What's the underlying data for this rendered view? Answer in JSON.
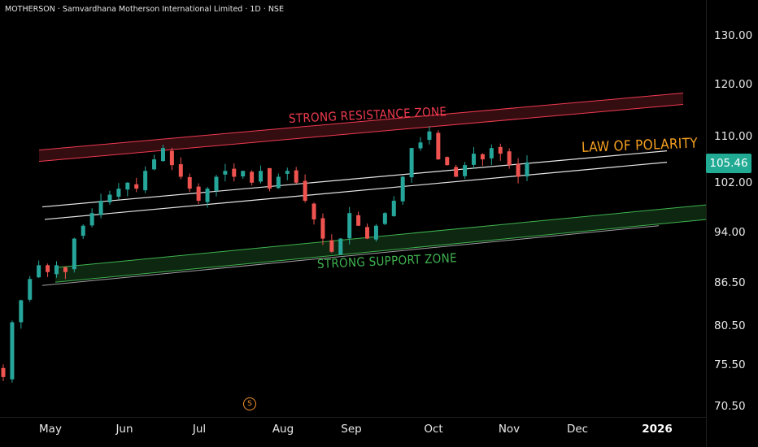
{
  "header": {
    "ticker": "MOTHERSON",
    "company": "Samvardhana Motherson International Limited",
    "interval": "1D",
    "exchange": "NSE"
  },
  "last_price": "105.46",
  "last_price_color": "#22ab94",
  "annotations": {
    "resistance": "STRONG RESISTANCE ZONE",
    "support": "STRONG SUPPORT ZONE",
    "polarity": "LAW OF POLARITY"
  },
  "dividend_marker": "S",
  "colors": {
    "up": "#26a69a",
    "down": "#ef5350",
    "resistance": "#ef3a4f",
    "support": "#3fb34f",
    "polarity": "#f5a020",
    "background": "#000000"
  },
  "chart_data": {
    "type": "candlestick",
    "y_axis": {
      "scale": "log",
      "ticks": [
        130.0,
        120.0,
        110.0,
        102.0,
        94.0,
        86.5,
        80.5,
        75.5,
        70.5
      ]
    },
    "x_axis": {
      "ticks": [
        "May",
        "Jun",
        "Jul",
        "Aug",
        "Sep",
        "Oct",
        "Nov",
        "Dec",
        "2026"
      ]
    },
    "close_path": [
      [
        "Apr",
        74
      ],
      [
        "Apr",
        81
      ],
      [
        "Apr",
        84
      ],
      [
        "Apr",
        87
      ],
      [
        "Apr",
        89
      ],
      [
        "Apr",
        88
      ],
      [
        "May",
        89
      ],
      [
        "May",
        88
      ],
      [
        "May",
        93
      ],
      [
        "May",
        95
      ],
      [
        "May",
        97
      ],
      [
        "May",
        99
      ],
      [
        "May",
        100
      ],
      [
        "May",
        101
      ],
      [
        "May",
        102
      ],
      [
        "May",
        101
      ],
      [
        "Jun",
        104
      ],
      [
        "Jun",
        106
      ],
      [
        "Jun",
        108
      ],
      [
        "Jun",
        105
      ],
      [
        "Jun",
        103
      ],
      [
        "Jun",
        101
      ],
      [
        "Jun",
        99
      ],
      [
        "Jun",
        101
      ],
      [
        "Jul",
        103
      ],
      [
        "Jul",
        104
      ],
      [
        "Jul",
        103
      ],
      [
        "Jul",
        104
      ],
      [
        "Jul",
        102
      ],
      [
        "Jul",
        104
      ],
      [
        "Jul",
        101
      ],
      [
        "Jul",
        103
      ],
      [
        "Jul",
        104
      ],
      [
        "Aug",
        102
      ],
      [
        "Aug",
        99
      ],
      [
        "Aug",
        96
      ],
      [
        "Aug",
        93
      ],
      [
        "Aug",
        91
      ],
      [
        "Aug",
        93
      ],
      [
        "Aug",
        97
      ],
      [
        "Aug",
        95
      ],
      [
        "Sep",
        93
      ],
      [
        "Sep",
        95
      ],
      [
        "Sep",
        97
      ],
      [
        "Sep",
        99
      ],
      [
        "Sep",
        103
      ],
      [
        "Sep",
        108
      ],
      [
        "Sep",
        109
      ],
      [
        "Sep",
        111
      ],
      [
        "Oct",
        106
      ],
      [
        "Oct",
        105
      ],
      [
        "Oct",
        103
      ],
      [
        "Oct",
        105
      ],
      [
        "Oct",
        107
      ],
      [
        "Oct",
        106
      ],
      [
        "Oct",
        108
      ],
      [
        "Nov",
        107
      ],
      [
        "Nov",
        105
      ],
      [
        "Nov",
        103
      ],
      [
        "Nov",
        105.46
      ]
    ],
    "zones": {
      "resistance": {
        "start": [
          "Apr",
          106.5
        ],
        "end": [
          "Dec",
          117
        ]
      },
      "support": {
        "start": [
          "Apr",
          87
        ],
        "end": [
          "2026",
          96.5
        ]
      },
      "polarity_channel": {
        "upper_start": [
          "Apr",
          98
        ],
        "lower_start": [
          "Apr",
          96
        ],
        "upper_end": [
          "Dec",
          107.5
        ],
        "lower_end": [
          "Dec",
          105.5
        ]
      }
    }
  }
}
